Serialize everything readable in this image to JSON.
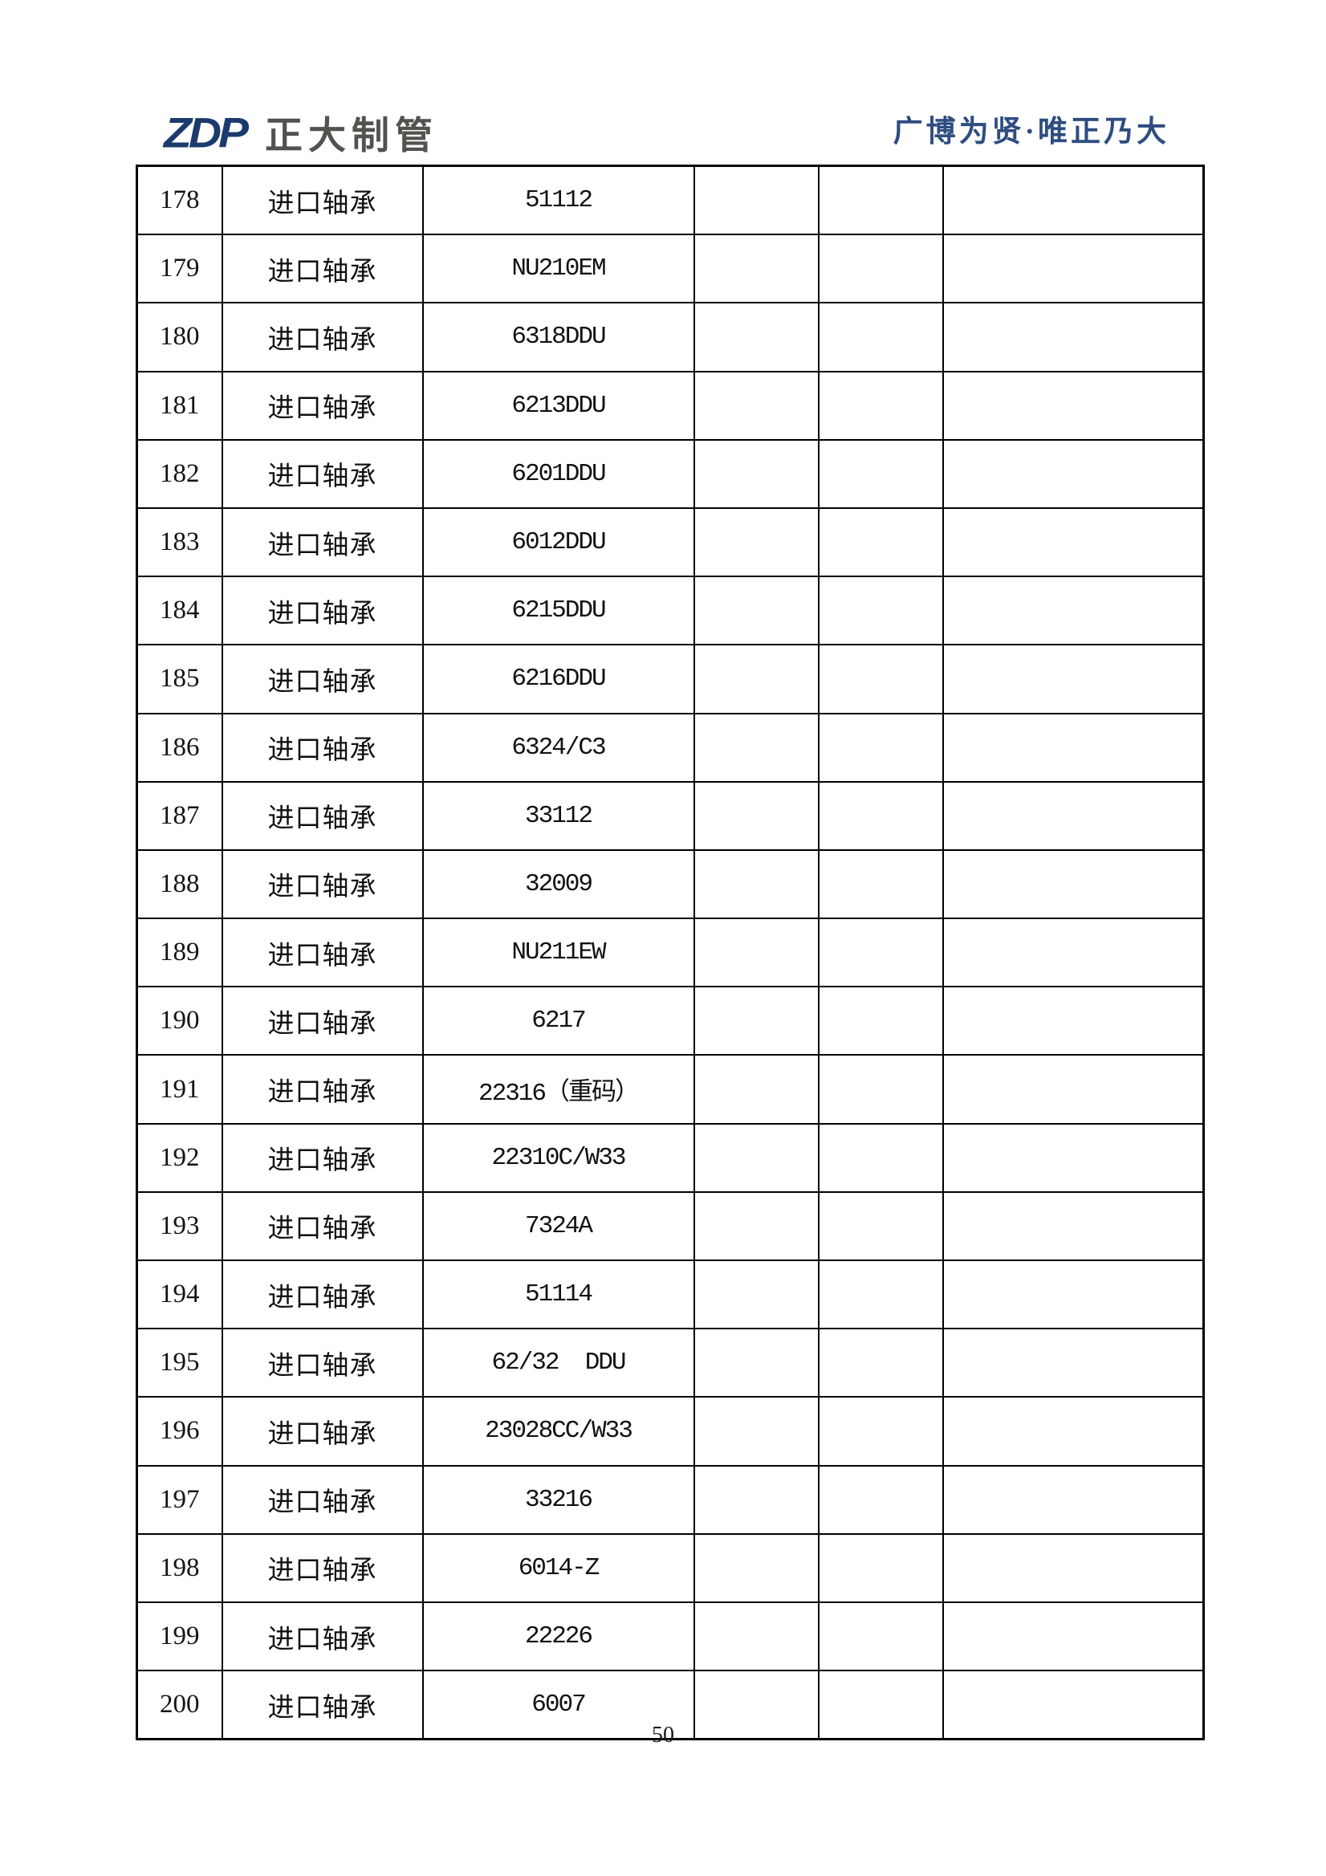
{
  "header": {
    "logo_abbr": "ZDP",
    "logo_company": "正大制管",
    "slogan": "广博为贤·唯正乃大"
  },
  "footer": {
    "page_number": "50"
  },
  "colors": {
    "logo_navy": "#1b3a6d",
    "logo_gray": "#54524e",
    "slogan_navy": "#2e4d80",
    "table_border": "#000000"
  },
  "table": {
    "column_roles": [
      "row-number",
      "category",
      "part-number",
      "empty",
      "empty",
      "empty"
    ],
    "rows": [
      [
        "178",
        "进口轴承",
        "51112",
        "",
        "",
        ""
      ],
      [
        "179",
        "进口轴承",
        "NU210EM",
        "",
        "",
        ""
      ],
      [
        "180",
        "进口轴承",
        "6318DDU",
        "",
        "",
        ""
      ],
      [
        "181",
        "进口轴承",
        "6213DDU",
        "",
        "",
        ""
      ],
      [
        "182",
        "进口轴承",
        "6201DDU",
        "",
        "",
        ""
      ],
      [
        "183",
        "进口轴承",
        "6012DDU",
        "",
        "",
        ""
      ],
      [
        "184",
        "进口轴承",
        "6215DDU",
        "",
        "",
        ""
      ],
      [
        "185",
        "进口轴承",
        "6216DDU",
        "",
        "",
        ""
      ],
      [
        "186",
        "进口轴承",
        "6324/C3",
        "",
        "",
        ""
      ],
      [
        "187",
        "进口轴承",
        "33112",
        "",
        "",
        ""
      ],
      [
        "188",
        "进口轴承",
        "32009",
        "",
        "",
        ""
      ],
      [
        "189",
        "进口轴承",
        "NU211EW",
        "",
        "",
        ""
      ],
      [
        "190",
        "进口轴承",
        "6217",
        "",
        "",
        ""
      ],
      [
        "191",
        "进口轴承",
        "22316（重码）",
        "",
        "",
        ""
      ],
      [
        "192",
        "进口轴承",
        "22310C/W33",
        "",
        "",
        ""
      ],
      [
        "193",
        "进口轴承",
        "7324A",
        "",
        "",
        ""
      ],
      [
        "194",
        "进口轴承",
        "51114",
        "",
        "",
        ""
      ],
      [
        "195",
        "进口轴承",
        "62/32  DDU",
        "",
        "",
        ""
      ],
      [
        "196",
        "进口轴承",
        "23028CC/W33",
        "",
        "",
        ""
      ],
      [
        "197",
        "进口轴承",
        "33216",
        "",
        "",
        ""
      ],
      [
        "198",
        "进口轴承",
        "6014-Z",
        "",
        "",
        ""
      ],
      [
        "199",
        "进口轴承",
        "22226",
        "",
        "",
        ""
      ],
      [
        "200",
        "进口轴承",
        "6007",
        "",
        "",
        ""
      ]
    ]
  }
}
